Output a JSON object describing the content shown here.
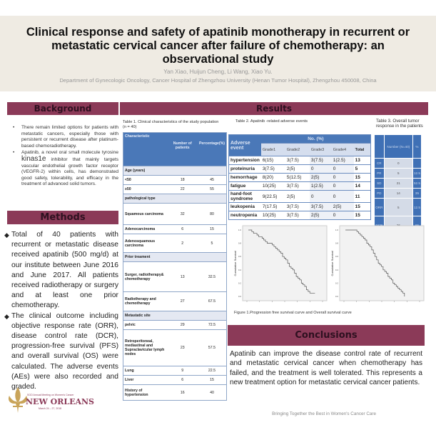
{
  "header": {
    "title": "Clinical response and safety of apatinib monotherapy in recurrent or metastatic cervical cancer after failure of chemotherapy: an observational study",
    "authors": "Yan Xiao, Huijun Cheng, Li Wang, Xiao Yu.",
    "affiliation": "Department of Gynecologic Oncology, Cancer Hospital of Zhengzhou University (Henan Tumor Hospital), Zhengzhou 450008, China"
  },
  "background": {
    "heading": "Background",
    "bullets": [
      "There remain limited options for patients with metastatic cancers, especially those with persistent or recurrent disease after platinum-based chemoradiotherapy.",
      {
        "pre": "Apatinib, a novel oral small molecule tyrosine ",
        "big": "kinas1e",
        "post": " inhibitor that mainly targets vascular endothelial growth factor receptor (VEGFR-2) within cells, has demonstrated good safety, tolerability, and efficacy in the treatment of advanced solid tumors."
      }
    ]
  },
  "methods": {
    "heading": "Methods",
    "bullets": [
      "Total of 40 patients with recurrent or metastatic disease received apatinib (500 mg/d) at our institute between June 2016 and June 2017. All patients received radiotherapy or surgery and at least one prior chemotherapy.",
      "The clinical outcome including objective response rate (ORR), disease control rate (DCR), progression-free survival (PFS) and overall survival (OS) were calculated. The adverse events (AEs) were also recorded and graded."
    ]
  },
  "results": {
    "heading": "Results"
  },
  "table1": {
    "caption": "Table 1. Clinical characteristics of the study population (n = 40)",
    "headers": [
      "Characteristic",
      "Number of patients",
      "Percentage(%)"
    ],
    "rows": [
      {
        "s": "Age (years)"
      },
      {
        "c": "<50",
        "n": "18",
        "p": "45"
      },
      {
        "c": "≥50",
        "n": "22",
        "p": "55"
      },
      {
        "s": "pathological type"
      },
      {
        "c": "Squamous carcinoma",
        "n": "32",
        "p": "80"
      },
      {
        "c": "Adenocarcinoma",
        "n": "6",
        "p": "15"
      },
      {
        "c": "Adenosquamous carcinoma",
        "n": "2",
        "p": "5"
      },
      {
        "s": "Prior treament"
      },
      {
        "c": "Surger, radiotherapy& chemotherapy",
        "n": "13",
        "p": "32.5"
      },
      {
        "c": "Radiotherapy and chemotherapy",
        "n": "27",
        "p": "67.5"
      },
      {
        "s": "Metastatic site"
      },
      {
        "c": "pelvic",
        "n": "29",
        "p": "72.5"
      },
      {
        "c": "Retroperitoneal, mediastinal and Supraclavicular lymph nodes",
        "n": "23",
        "p": "57.5"
      },
      {
        "c": "Lung",
        "n": "9",
        "p": "22.5"
      },
      {
        "c": "Liver",
        "n": "6",
        "p": "15"
      },
      {
        "c": "History of hypertension",
        "n": "16",
        "p": "40"
      }
    ]
  },
  "table2": {
    "caption": "Table 2. Apatinib -related adverse events",
    "group": "No. (%)",
    "ae": "Adverse event",
    "cols": [
      "Grade1",
      "Grade2",
      "Grade3",
      "Grade4",
      "Total"
    ],
    "rows": [
      [
        "hypertension",
        "6(15)",
        "3(7.5)",
        "3(7.5)",
        "1(2.5)",
        "13"
      ],
      [
        "proteinuria",
        "3(7.5)",
        "2(5)",
        "0",
        "0",
        "5"
      ],
      [
        "hemorrhage",
        "8(20)",
        "5(12.5)",
        "2(5)",
        "0",
        "15"
      ],
      [
        "fatigue",
        "10(25)",
        "3(7.5)",
        "1(2.5)",
        "0",
        "14"
      ],
      [
        "hand-foot syndrome",
        "9(22.5)",
        "2(5)",
        "0",
        "0",
        "11"
      ],
      [
        "leukopenia",
        "7(17.5)",
        "3(7.5)",
        "3(7.5)",
        "2(5)",
        "15"
      ],
      [
        "neutropenia",
        "10(25)",
        "3(7.5)",
        "2(5)",
        "0",
        "15"
      ]
    ]
  },
  "table3": {
    "caption": "Table 3. Overall tumor response in the patients",
    "headers": [
      "",
      "Number (N=40)",
      "%"
    ],
    "rows": [
      [
        "CR",
        "0",
        ""
      ],
      [
        "PR",
        "5",
        "12.5"
      ],
      [
        "SD",
        "21",
        "52.5"
      ],
      [
        "PD",
        "14",
        "35"
      ],
      [
        "ORR",
        "5",
        "12.5"
      ],
      [
        "DCR",
        "26",
        "65"
      ]
    ]
  },
  "chart_data": [
    {
      "type": "line",
      "step": true,
      "ylabel": "Cumulative Survival",
      "ylim": [
        0,
        1
      ],
      "yticks": [
        "1.0",
        "0.8",
        "0.6",
        "0.4",
        "0.2",
        "0.0"
      ],
      "grid": false,
      "y": [
        1,
        1,
        0.975,
        0.95,
        0.95,
        0.925,
        0.9,
        0.9,
        0.875,
        0.85,
        0.825,
        0.8,
        0.8,
        0.8,
        0.775,
        0.75,
        0.725,
        0.7,
        0.675,
        0.65,
        0.6,
        0.575,
        0.55,
        0.5,
        0.45,
        0.425,
        0.4,
        0.35,
        0.3,
        0.275,
        0.25,
        0.2,
        0.175,
        0.15,
        0.1,
        0.075,
        0.05,
        0.05,
        0.05,
        0.05
      ]
    },
    {
      "type": "line",
      "step": true,
      "ylabel": "Cumulative Survival",
      "ylim": [
        0,
        1
      ],
      "yticks": [
        "1.0",
        "0.8",
        "0.6",
        "0.4",
        "0.2",
        "0.0"
      ],
      "grid": false,
      "y": [
        1,
        1,
        1,
        1,
        1,
        1,
        1,
        0.975,
        0.95,
        0.925,
        0.9,
        0.875,
        0.85,
        0.8,
        0.775,
        0.75,
        0.7,
        0.65,
        0.6,
        0.55,
        0.5,
        0.475,
        0.45,
        0.4,
        0.375,
        0.35,
        0.3,
        0.275,
        0.25,
        0.2,
        0.175,
        0.15,
        0.125,
        0.1,
        0.075,
        0.05,
        0.0
      ]
    }
  ],
  "figure": {
    "caption": "Figure 1.Progression free survival curve and Overall survival curve"
  },
  "conclusions": {
    "heading": "Conclusions",
    "text": "Apatinib can improve the disease control rate of recurrent and metastatic cervical cancer when chemotherapy has failed, and the treatment is well tolerated. This represents a new treatment option for metastatic cervical cancer patients."
  },
  "logo": {
    "line1": "SGO Annual Meeting on Women's Cancer",
    "line2": "NEW ORLEANS",
    "line3": "March 24 – 27, 2018"
  },
  "footer": {
    "tagline": "Bringing Together the Best in Women's Cancer Care"
  },
  "colors": {
    "accent": "#8b3a58",
    "table_blue": "#4a78b8",
    "title_band": "#efebe3"
  }
}
